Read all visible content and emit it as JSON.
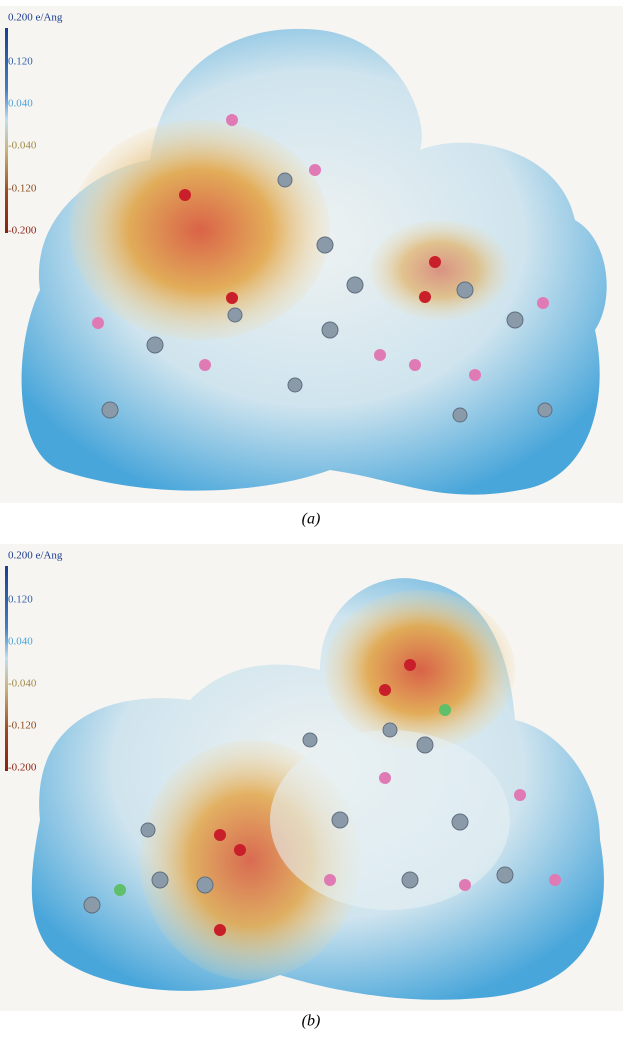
{
  "panels": [
    {
      "scale_labels": [
        "0.200 e/Ang",
        "0.120",
        "0.040",
        "-0.040",
        "-0.120",
        "-0.200"
      ],
      "caption": "(a)"
    },
    {
      "scale_labels": [
        "0.200 e/Ang",
        "0.120",
        "0.040",
        "-0.040",
        "-0.120",
        "-0.200"
      ],
      "caption": "(b)"
    }
  ]
}
